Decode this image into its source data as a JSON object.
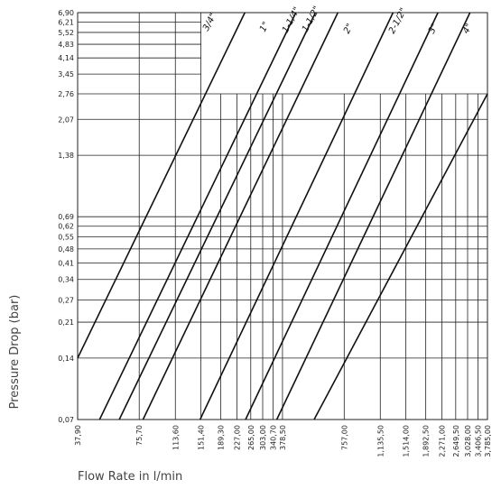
{
  "chart_data": {
    "type": "line",
    "title": "",
    "xlabel": "Flow Rate in l/min",
    "ylabel": "Pressure Drop (bar)",
    "x_scale": "log",
    "y_scale": "log",
    "xlim": [
      37.9,
      3785.0
    ],
    "ylim": [
      0.07,
      6.9
    ],
    "x_ticks": [
      "37,90",
      "75,70",
      "113,60",
      "151,40",
      "189,30",
      "227,00",
      "265,00",
      "303,00",
      "340,70",
      "378,50",
      "757,00",
      "1,135,50",
      "1,514,00",
      "1,892,50",
      "2,271,00",
      "2,649,50",
      "3,028,00",
      "3,406,50",
      "3,785,00"
    ],
    "y_ticks": [
      "6,90",
      "6,21",
      "5,52",
      "4,83",
      "4,14",
      "3,45",
      "2,76",
      "2,07",
      "1,38",
      "0,69",
      "0,62",
      "0,55",
      "0,48",
      "0,41",
      "0,34",
      "0,27",
      "0,21",
      "0,14",
      "0,07"
    ],
    "grid": true,
    "series": [
      {
        "name": "3/4\"",
        "points": [
          [
            37.9,
            0.14
          ],
          [
            248.0,
            6.9
          ]
        ]
      },
      {
        "name": "1\"",
        "points": [
          [
            48.5,
            0.07
          ],
          [
            440.0,
            6.9
          ]
        ]
      },
      {
        "name": "1-1/4\"",
        "points": [
          [
            60.5,
            0.07
          ],
          [
            548.0,
            6.9
          ]
        ]
      },
      {
        "name": "1-1/2\"",
        "points": [
          [
            79.0,
            0.07
          ],
          [
            705.0,
            6.9
          ]
        ]
      },
      {
        "name": "2\"",
        "points": [
          [
            150.0,
            0.07
          ],
          [
            1310.0,
            6.9
          ]
        ]
      },
      {
        "name": "2-1/2\"",
        "points": [
          [
            250.0,
            0.07
          ],
          [
            2170.0,
            6.9
          ]
        ]
      },
      {
        "name": "3\"",
        "points": [
          [
            355.0,
            0.07
          ],
          [
            3110.0,
            6.9
          ]
        ]
      },
      {
        "name": "4\"",
        "points": [
          [
            540.0,
            0.07
          ],
          [
            3785.0,
            2.76
          ]
        ]
      }
    ]
  }
}
